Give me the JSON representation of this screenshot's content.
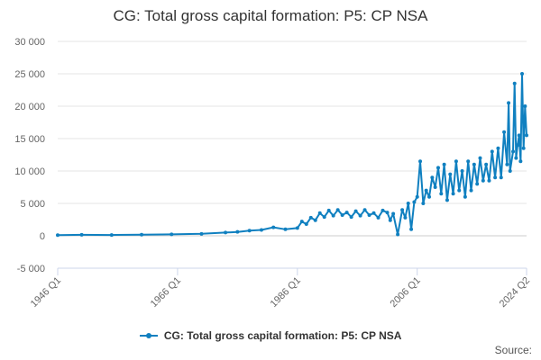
{
  "chart_data": {
    "type": "line",
    "title": "CG: Total gross capital formation: P5: CP NSA",
    "xlabel": "",
    "ylabel": "",
    "ylim": [
      -5000,
      30000
    ],
    "yticks": [
      "-5 000",
      "0",
      "5 000",
      "10 000",
      "15 000",
      "20 000",
      "25 000",
      "30 000"
    ],
    "ytick_values": [
      -5000,
      0,
      5000,
      10000,
      15000,
      20000,
      25000,
      30000
    ],
    "xlim": [
      1946.0,
      2024.25
    ],
    "xticks": [
      "1946 Q1",
      "1966 Q1",
      "1986 Q1",
      "2006 Q1",
      "2024 Q2"
    ],
    "xtick_values": [
      1946.0,
      1966.0,
      1986.0,
      2006.0,
      2024.25
    ],
    "grid": true,
    "legend_position": "bottom",
    "color": "#1080c0",
    "series": [
      {
        "name": "CG: Total gross capital formation: P5: CP NSA",
        "x": [
          1946.0,
          1950.0,
          1955.0,
          1960.0,
          1965.0,
          1970.0,
          1974.0,
          1976.0,
          1978.0,
          1980.0,
          1982.0,
          1984.0,
          1986.0,
          1986.75,
          1987.5,
          1988.25,
          1989.0,
          1989.75,
          1990.5,
          1991.25,
          1992.0,
          1992.75,
          1993.5,
          1994.25,
          1995.0,
          1995.75,
          1996.5,
          1997.25,
          1998.0,
          1998.75,
          1999.5,
          2000.25,
          2001.0,
          2001.5,
          2002.0,
          2002.75,
          2003.5,
          2004.0,
          2004.5,
          2005.0,
          2005.5,
          2006.0,
          2006.5,
          2007.0,
          2007.5,
          2008.0,
          2008.5,
          2009.0,
          2009.5,
          2010.0,
          2010.5,
          2011.0,
          2011.5,
          2012.0,
          2012.5,
          2013.0,
          2013.5,
          2014.0,
          2014.5,
          2015.0,
          2015.5,
          2016.0,
          2016.5,
          2017.0,
          2017.5,
          2018.0,
          2018.5,
          2019.0,
          2019.5,
          2020.0,
          2020.5,
          2021.0,
          2021.25,
          2021.5,
          2022.0,
          2022.25,
          2022.5,
          2022.75,
          2023.0,
          2023.25,
          2023.5,
          2023.75,
          2024.0,
          2024.25
        ],
        "values": [
          100,
          150,
          120,
          180,
          220,
          300,
          500,
          600,
          800,
          900,
          1300,
          1000,
          1200,
          2200,
          1800,
          2800,
          2400,
          3500,
          2900,
          3900,
          3100,
          4000,
          3200,
          3600,
          2900,
          3800,
          3100,
          4000,
          3200,
          3500,
          2800,
          3900,
          3600,
          2400,
          3400,
          200,
          4000,
          2800,
          5000,
          1000,
          5200,
          6000,
          11500,
          5000,
          7000,
          6000,
          9000,
          7500,
          10500,
          6500,
          11000,
          5500,
          9500,
          6500,
          11500,
          7000,
          10000,
          6000,
          11500,
          7000,
          11000,
          8000,
          12000,
          8500,
          11000,
          8500,
          13000,
          9000,
          13500,
          9000,
          16000,
          11000,
          20500,
          10000,
          13000,
          23500,
          12000,
          14000,
          15500,
          11500,
          25000,
          13500,
          20000,
          15500
        ]
      }
    ]
  },
  "source_label": "Source:"
}
